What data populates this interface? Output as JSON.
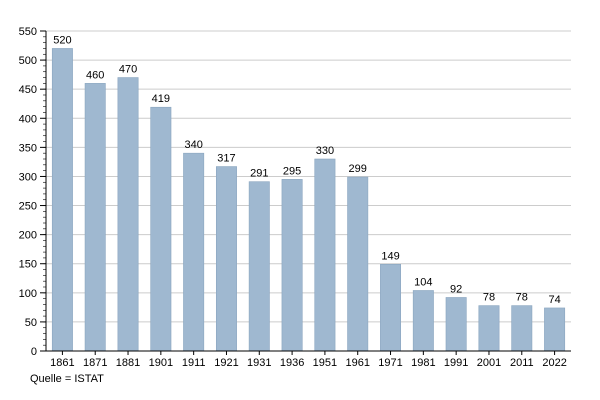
{
  "chart_data": {
    "type": "bar",
    "title": "",
    "xlabel": "",
    "ylabel": "",
    "categories": [
      "1861",
      "1871",
      "1881",
      "1901",
      "1911",
      "1921",
      "1931",
      "1936",
      "1951",
      "1961",
      "1971",
      "1981",
      "1991",
      "2001",
      "2011",
      "2022"
    ],
    "values": [
      520,
      460,
      470,
      419,
      340,
      317,
      291,
      295,
      330,
      299,
      149,
      104,
      92,
      78,
      78,
      74
    ],
    "ylim": [
      0,
      550
    ],
    "yticks": [
      0,
      50,
      100,
      150,
      200,
      250,
      300,
      350,
      400,
      450,
      500,
      550
    ],
    "grid": true,
    "legend": "none",
    "source_note": "Quelle = ISTAT",
    "colors": {
      "bar_fill": "#9fb8d0",
      "bar_stroke": "#8aa5bf",
      "grid": "#cccccc",
      "axis": "#000000"
    }
  }
}
